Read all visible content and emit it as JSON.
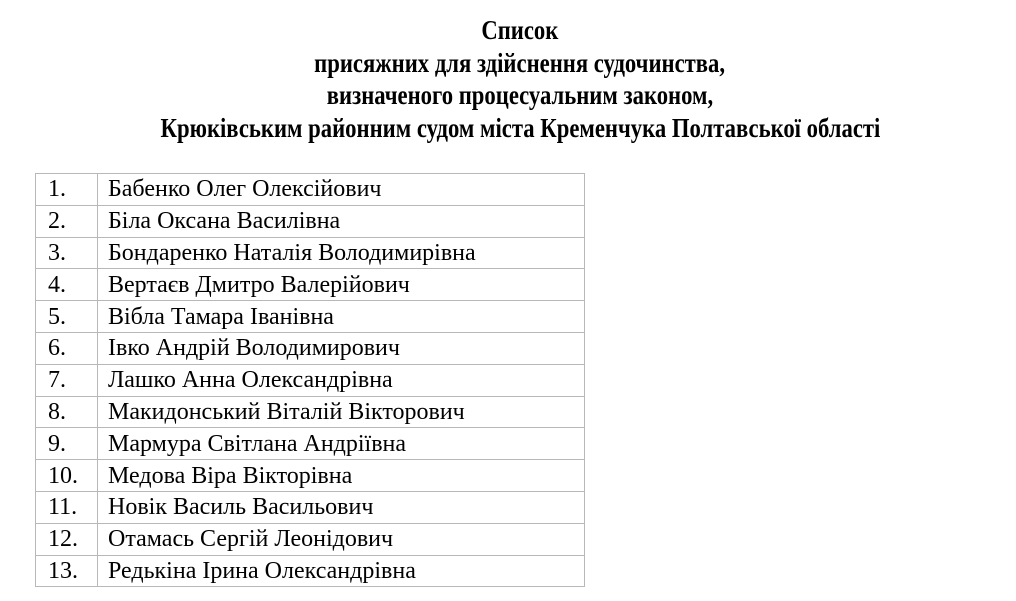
{
  "title": {
    "lines": [
      "Список",
      "присяжних для здійснення судочинства,",
      "визначеного процесуальним законом,",
      "Крюківським районним судом міста Кременчука Полтавської області"
    ]
  },
  "jurors": [
    {
      "num": "1.",
      "name": "Бабенко Олег Олексійович"
    },
    {
      "num": "2.",
      "name": "Біла Оксана Василівна"
    },
    {
      "num": "3.",
      "name": "Бондаренко Наталія Володимирівна"
    },
    {
      "num": "4.",
      "name": "Вертаєв Дмитро Валерійович"
    },
    {
      "num": "5.",
      "name": "Вібла Тамара Іванівна"
    },
    {
      "num": "6.",
      "name": "Івко Андрій Володимирович"
    },
    {
      "num": "7.",
      "name": "Лашко Анна Олександрівна"
    },
    {
      "num": "8.",
      "name": "Макидонський Віталій Вікторович"
    },
    {
      "num": "9.",
      "name": "Мармура Світлана Андріївна"
    },
    {
      "num": "10.",
      "name": "Медова Віра Вікторівна"
    },
    {
      "num": "11.",
      "name": "Новік Василь Васильович"
    },
    {
      "num": "12.",
      "name": "Отамась Сергій Леонідович"
    },
    {
      "num": "13.",
      "name": "Редькіна Ірина Олександрівна"
    }
  ]
}
